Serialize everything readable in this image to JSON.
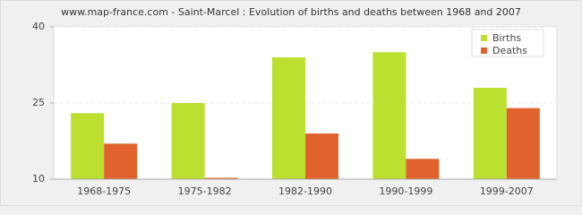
{
  "chart_data": {
    "type": "bar",
    "title": "www.map-france.com - Saint-Marcel : Evolution of births and deaths between 1968 and 2007",
    "categories": [
      "1968-1975",
      "1975-1982",
      "1982-1990",
      "1990-1999",
      "1999-2007"
    ],
    "series": [
      {
        "name": "Births",
        "color": "#bbe02f",
        "values": [
          23,
          25,
          34,
          35,
          28
        ]
      },
      {
        "name": "Deaths",
        "color": "#e0632d",
        "values": [
          17,
          10,
          19,
          14,
          24
        ]
      }
    ],
    "ylim": [
      10,
      40
    ],
    "yticks": [
      10,
      25,
      40
    ],
    "grid": true,
    "legend": "top-right"
  }
}
